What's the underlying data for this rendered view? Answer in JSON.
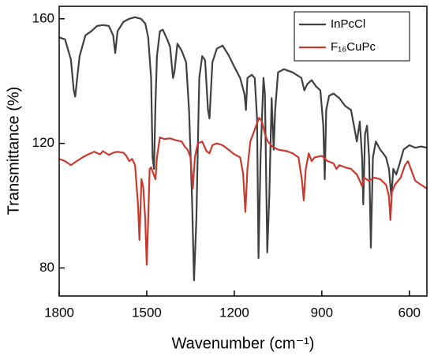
{
  "chart_data": {
    "type": "line",
    "xlabel": "Wavenumber (cm⁻¹)",
    "ylabel": "Transmittance (%)",
    "xlim": [
      1800,
      540
    ],
    "xticks": [
      1800,
      1500,
      1200,
      900,
      600
    ],
    "ylim": [
      71,
      164
    ],
    "yticks": [
      80,
      120,
      160
    ],
    "legend": "upper right",
    "series": [
      {
        "name": "InPcCl",
        "color": "#404040",
        "x": [
          1800,
          1780,
          1760,
          1750,
          1745,
          1740,
          1730,
          1710,
          1690,
          1670,
          1650,
          1630,
          1615,
          1608,
          1600,
          1580,
          1560,
          1540,
          1520,
          1505,
          1495,
          1485,
          1480,
          1475,
          1470,
          1465,
          1455,
          1445,
          1430,
          1420,
          1410,
          1405,
          1395,
          1380,
          1365,
          1355,
          1345,
          1338,
          1330,
          1320,
          1310,
          1300,
          1290,
          1285,
          1275,
          1260,
          1240,
          1220,
          1200,
          1180,
          1165,
          1160,
          1155,
          1140,
          1130,
          1122,
          1117,
          1110,
          1100,
          1095,
          1087,
          1080,
          1072,
          1065,
          1060,
          1050,
          1030,
          1000,
          970,
          960,
          950,
          935,
          920,
          905,
          895,
          890,
          885,
          875,
          860,
          840,
          820,
          800,
          790,
          780,
          770,
          762,
          758,
          752,
          745,
          738,
          732,
          725,
          715,
          700,
          690,
          680,
          670,
          662,
          655,
          645,
          635,
          620,
          600,
          580,
          560,
          540
        ],
        "values": [
          154,
          153.4,
          147,
          137,
          135,
          139.5,
          148,
          154.7,
          156,
          157.7,
          158,
          157.7,
          154.7,
          149,
          156,
          159,
          160,
          160.5,
          160,
          158.5,
          154,
          141,
          115.5,
          111.8,
          133,
          148,
          156,
          156.5,
          153.4,
          151,
          141,
          143,
          152,
          149.7,
          146,
          130.7,
          103,
          76,
          95.4,
          141,
          148,
          146.7,
          130.7,
          128,
          146,
          150.4,
          151.4,
          148.4,
          144.6,
          141,
          135.8,
          130.7,
          141,
          142,
          141,
          128,
          83.2,
          115.5,
          141,
          135.8,
          85,
          103,
          134.5,
          118,
          130.7,
          142.8,
          143.8,
          142.8,
          141,
          137,
          139,
          140.3,
          138.3,
          137,
          125.7,
          108.5,
          130.7,
          135.3,
          136,
          134.5,
          132,
          130.7,
          125.7,
          120.6,
          127,
          115.5,
          100.4,
          123,
          125.7,
          115.5,
          86.5,
          115.5,
          120.6,
          118,
          116.8,
          115.5,
          111.8,
          103,
          111.8,
          110,
          113,
          118,
          119.4,
          118.6,
          119,
          118.6
        ]
      },
      {
        "name": "F₁₆CuPc",
        "color": "#c83a2e",
        "x": [
          1800,
          1780,
          1760,
          1740,
          1720,
          1700,
          1680,
          1660,
          1650,
          1630,
          1615,
          1600,
          1580,
          1570,
          1560,
          1550,
          1540,
          1530,
          1525,
          1518,
          1512,
          1505,
          1500,
          1495,
          1490,
          1485,
          1478,
          1470,
          1465,
          1455,
          1440,
          1420,
          1400,
          1380,
          1370,
          1360,
          1350,
          1342,
          1335,
          1325,
          1310,
          1295,
          1285,
          1275,
          1260,
          1240,
          1220,
          1200,
          1180,
          1170,
          1162,
          1155,
          1145,
          1130,
          1115,
          1105,
          1095,
          1085,
          1070,
          1050,
          1020,
          1000,
          980,
          968,
          962,
          955,
          945,
          935,
          925,
          900,
          880,
          860,
          850,
          840,
          820,
          800,
          780,
          770,
          762,
          755,
          740,
          720,
          700,
          680,
          670,
          665,
          660,
          650,
          630,
          615,
          605,
          595,
          580,
          560,
          540
        ],
        "values": [
          115,
          114.3,
          113,
          114.3,
          115.5,
          116.5,
          117.3,
          116.5,
          117.5,
          116.3,
          117,
          117.3,
          117,
          116,
          114.3,
          115,
          113,
          100.4,
          89,
          108.5,
          106,
          95.4,
          81,
          95.4,
          111.8,
          112.3,
          110.5,
          108.5,
          115.5,
          121.9,
          121.4,
          121.6,
          121,
          120.6,
          119,
          118,
          115.5,
          105.5,
          115.5,
          120,
          120.6,
          117.5,
          116.8,
          119.4,
          120,
          119.4,
          118,
          116.5,
          115.5,
          110.5,
          98,
          111.8,
          120.6,
          124.4,
          128.2,
          127,
          123,
          120.6,
          119,
          118,
          117.5,
          116.8,
          115.5,
          108,
          101.7,
          111.8,
          116.8,
          114.3,
          115.5,
          116,
          114.3,
          113.6,
          111.8,
          113,
          112.3,
          111.8,
          110,
          108,
          106.2,
          109,
          108,
          109,
          108.5,
          106.7,
          103,
          95.4,
          104.3,
          106.7,
          109,
          113,
          114.3,
          111.8,
          108,
          106.7,
          105.5
        ]
      }
    ]
  }
}
